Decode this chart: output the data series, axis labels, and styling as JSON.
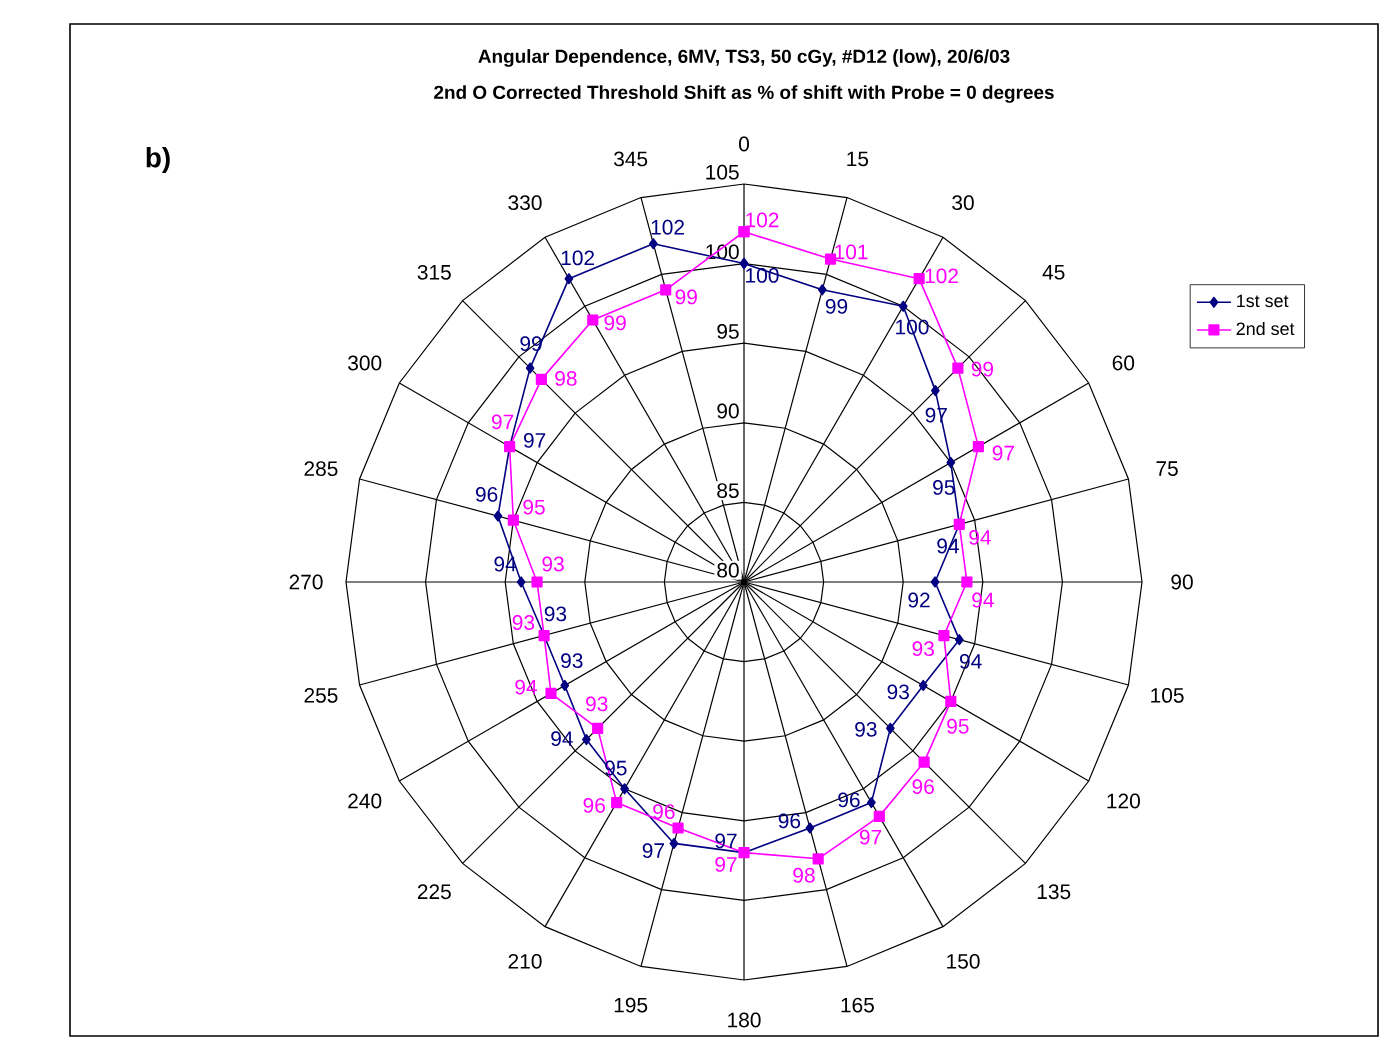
{
  "chart_data": {
    "type": "radar",
    "title": "Angular Dependence, 6MV, TS3, 50 cGy, #D12 (low), 20/6/03",
    "subtitle": "2nd O Corrected Threshold Shift as % of shift with Probe = 0 degrees",
    "annotations": [
      "b)"
    ],
    "categories": [
      "0",
      "15",
      "30",
      "45",
      "60",
      "75",
      "90",
      "105",
      "120",
      "135",
      "150",
      "165",
      "180",
      "195",
      "210",
      "225",
      "240",
      "255",
      "270",
      "285",
      "300",
      "315",
      "330",
      "345"
    ],
    "ylim": [
      80,
      105
    ],
    "yticks": [
      80,
      85,
      90,
      95,
      100,
      105
    ],
    "grid": true,
    "legend": "top right",
    "data_labels": true,
    "series": [
      {
        "name": "1st set",
        "color": "#000080",
        "marker": "diamond",
        "values": [
          100,
          99,
          100,
          97,
          95,
          94,
          92,
          94,
          93,
          93,
          96,
          96,
          97,
          97,
          95,
          94,
          93,
          93,
          94,
          96,
          97,
          99,
          102,
          102
        ]
      },
      {
        "name": "2nd set",
        "color": "#ff00ff",
        "marker": "square",
        "values": [
          102,
          101,
          102,
          99,
          97,
          94,
          94,
          93,
          95,
          96,
          97,
          98,
          97,
          96,
          96,
          93,
          94,
          93,
          93,
          95,
          97,
          98,
          99,
          99
        ]
      }
    ]
  }
}
